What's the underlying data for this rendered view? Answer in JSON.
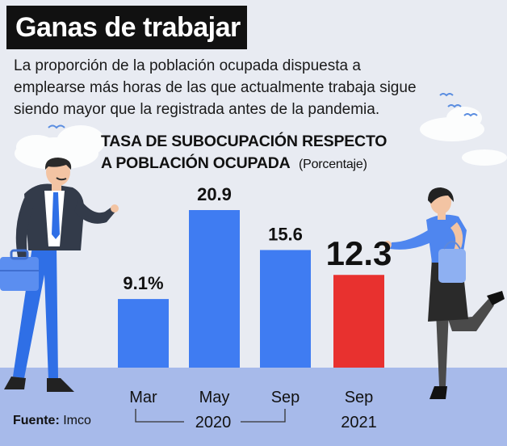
{
  "header": {
    "title": "Ganas de trabajar",
    "description_lines": [
      "La proporción de la población ocupada dispuesta a",
      "emplearse más horas de las que actualmente trabaja sigue",
      "siendo mayor que la registrada antes de la pandemia."
    ]
  },
  "chart_data": {
    "type": "bar",
    "title_line1": "TASA DE SUBOCUPACIÓN RESPECTO",
    "title_line2": "A POBLACIÓN OCUPADA",
    "unit_label": "(Porcentaje)",
    "categories": [
      "Mar",
      "May",
      "Sep",
      "Sep"
    ],
    "years": [
      {
        "label": "2020",
        "categories": [
          "Mar",
          "May",
          "Sep"
        ]
      },
      {
        "label": "2021",
        "categories": [
          "Sep"
        ]
      }
    ],
    "values": [
      9.1,
      20.9,
      15.6,
      12.3
    ],
    "value_labels": [
      "9.1%",
      "20.9",
      "15.6",
      "12.3"
    ],
    "highlight_index": 3,
    "ylim": [
      0,
      21
    ],
    "colors": {
      "bar": "#3f7cf2",
      "highlight": "#e8312f"
    }
  },
  "footer": {
    "source_label": "Fuente:",
    "source_value": "Imco"
  }
}
